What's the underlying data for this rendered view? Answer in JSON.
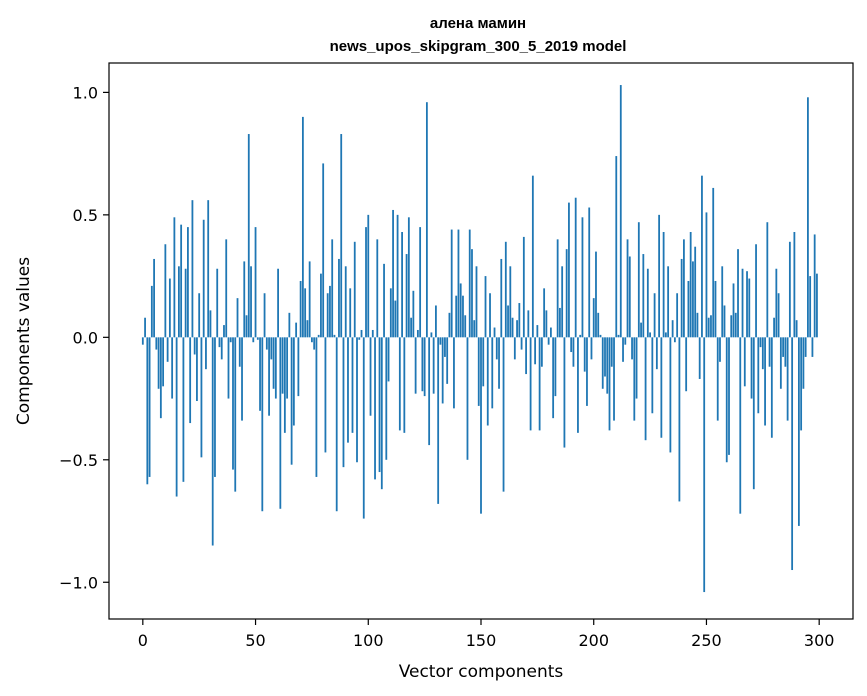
{
  "chart_data": {
    "type": "bar",
    "title_line1": "алена мамин",
    "title_line2": "news_upos_skipgram_300_5_2019 model",
    "xlabel": "Vector components",
    "ylabel": "Components values",
    "xlim": [
      -15,
      315
    ],
    "ylim": [
      -1.15,
      1.12
    ],
    "x_ticks": [
      0,
      50,
      100,
      150,
      200,
      250,
      300
    ],
    "x_tick_labels": [
      "0",
      "50",
      "100",
      "150",
      "200",
      "250",
      "300"
    ],
    "y_ticks": [
      1.0,
      0.5,
      0.0,
      -0.5,
      -1.0
    ],
    "y_tick_labels": [
      "1.0",
      "0.5",
      "0.0",
      "−0.5",
      "−1.0"
    ],
    "bar_color": "#1f77b4",
    "values": [
      -0.03,
      0.08,
      -0.6,
      -0.57,
      0.21,
      0.32,
      -0.05,
      -0.21,
      -0.33,
      -0.2,
      0.38,
      -0.1,
      0.24,
      -0.25,
      0.49,
      -0.65,
      0.29,
      0.46,
      -0.59,
      0.28,
      0.45,
      -0.35,
      0.56,
      -0.07,
      -0.26,
      0.18,
      -0.49,
      0.48,
      -0.13,
      0.56,
      0.11,
      -0.85,
      -0.57,
      0.28,
      -0.04,
      -0.09,
      0.05,
      0.4,
      -0.25,
      -0.02,
      -0.54,
      -0.63,
      0.16,
      -0.12,
      -0.34,
      0.31,
      0.09,
      0.83,
      0.29,
      -0.02,
      0.45,
      -0.01,
      -0.3,
      -0.71,
      0.18,
      -0.05,
      -0.32,
      -0.09,
      -0.21,
      -0.25,
      0.28,
      -0.7,
      -0.23,
      -0.39,
      -0.25,
      0.1,
      -0.52,
      -0.36,
      0.06,
      -0.24,
      0.23,
      0.9,
      0.2,
      0.07,
      0.31,
      -0.02,
      -0.05,
      -0.57,
      0.01,
      0.26,
      0.71,
      -0.47,
      0.18,
      0.21,
      0.4,
      0.01,
      -0.71,
      0.32,
      0.83,
      -0.53,
      0.29,
      -0.43,
      0.2,
      -0.39,
      0.39,
      -0.51,
      -0.01,
      0.03,
      -0.74,
      0.45,
      0.5,
      -0.32,
      0.03,
      -0.58,
      0.4,
      -0.55,
      -0.62,
      0.3,
      -0.5,
      -0.18,
      0.2,
      0.52,
      0.15,
      0.5,
      -0.38,
      0.43,
      -0.39,
      0.34,
      0.49,
      0.08,
      0.19,
      -0.23,
      0.03,
      0.45,
      -0.22,
      -0.24,
      0.96,
      -0.44,
      0.02,
      -0.23,
      0.13,
      -0.68,
      -0.03,
      -0.27,
      -0.08,
      -0.19,
      0.1,
      0.44,
      -0.29,
      0.17,
      0.44,
      0.22,
      0.17,
      0.09,
      -0.5,
      0.44,
      0.36,
      0.07,
      0.29,
      -0.28,
      -0.72,
      -0.2,
      0.25,
      -0.36,
      0.18,
      -0.29,
      0.04,
      -0.09,
      -0.21,
      0.32,
      -0.63,
      0.39,
      0.13,
      0.29,
      0.08,
      -0.09,
      0.07,
      0.14,
      -0.05,
      0.41,
      -0.15,
      0.11,
      -0.38,
      0.66,
      -0.11,
      0.05,
      -0.38,
      -0.12,
      0.2,
      0.11,
      -0.03,
      0.04,
      -0.33,
      -0.24,
      0.4,
      0.12,
      0.29,
      -0.45,
      0.36,
      0.55,
      -0.06,
      -0.12,
      0.57,
      -0.39,
      0.01,
      0.49,
      -0.14,
      -0.28,
      0.53,
      -0.09,
      0.16,
      0.35,
      0.1,
      0.01,
      -0.21,
      -0.16,
      -0.23,
      -0.38,
      -0.12,
      -0.34,
      0.74,
      0.01,
      1.03,
      -0.1,
      -0.03,
      0.4,
      0.33,
      -0.09,
      -0.34,
      -0.25,
      0.47,
      0.06,
      0.34,
      -0.42,
      0.28,
      0.02,
      -0.31,
      0.18,
      -0.13,
      0.5,
      -0.41,
      0.43,
      0.02,
      0.29,
      -0.47,
      0.07,
      -0.02,
      0.18,
      -0.67,
      0.32,
      0.4,
      -0.22,
      0.23,
      0.43,
      0.31,
      0.37,
      0.1,
      -0.17,
      0.66,
      -1.04,
      0.51,
      0.08,
      0.09,
      0.61,
      0.23,
      -0.34,
      -0.1,
      0.29,
      0.13,
      -0.51,
      -0.48,
      0.09,
      0.22,
      0.1,
      0.36,
      -0.72,
      0.28,
      -0.2,
      0.27,
      0.24,
      -0.25,
      -0.62,
      0.38,
      -0.31,
      -0.04,
      -0.13,
      -0.36,
      0.47,
      -0.12,
      -0.41,
      0.08,
      0.28,
      0.18,
      -0.21,
      -0.08,
      -0.12,
      -0.34,
      0.39,
      -0.95,
      0.43,
      0.07,
      -0.77,
      -0.38,
      -0.21,
      -0.08,
      0.98,
      0.25,
      -0.08,
      0.42,
      0.26
    ]
  }
}
